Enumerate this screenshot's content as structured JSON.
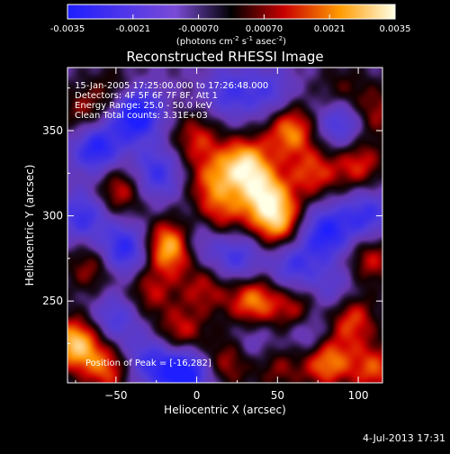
{
  "chart_data": {
    "type": "heatmap",
    "title": "Reconstructed RHESSI Image",
    "xlabel": "Heliocentric X (arcsec)",
    "ylabel": "Heliocentric Y (arcsec)",
    "xlim": [
      -80,
      115
    ],
    "ylim": [
      202,
      387
    ],
    "x_ticks": [
      -50,
      0,
      50,
      100
    ],
    "y_ticks": [
      250,
      300,
      350
    ],
    "colorbar": {
      "min": -0.0035,
      "max": 0.0035,
      "tick_values": [
        -0.0035,
        -0.0021,
        -0.0007,
        0.0007,
        0.0021,
        0.0035
      ],
      "tick_labels": [
        "-0.0035",
        "-0.0021",
        "-0.00070",
        "0.00070",
        "0.0021",
        "0.0035"
      ],
      "units_prefix": "(photons cm",
      "units_exp1": "-2",
      "units_mid1": " s",
      "units_exp2": "-1",
      "units_mid2": " asec",
      "units_exp3": "-2",
      "units_suffix": ")"
    },
    "info_lines": [
      "15-Jan-2005 17:25:00.000 to 17:26:48.000",
      "Detectors: 4F 5F 6F 7F 8F, Att 1",
      "Energy Range: 25.0 - 50.0 keV",
      "Clean    Total counts: 3.31E+03"
    ],
    "peak_label": "Position of Peak = [-16,282]",
    "peak": [
      -16,
      282
    ],
    "blobs": [
      {
        "x": -16,
        "y": 282,
        "v": 1.0
      },
      {
        "x": 30,
        "y": 330,
        "v": 0.95
      },
      {
        "x": 42,
        "y": 312,
        "v": 0.85
      },
      {
        "x": 50,
        "y": 296,
        "v": 0.8
      },
      {
        "x": 58,
        "y": 350,
        "v": 0.75
      },
      {
        "x": 72,
        "y": 325,
        "v": 0.55
      },
      {
        "x": 10,
        "y": 320,
        "v": 0.55
      },
      {
        "x": 15,
        "y": 300,
        "v": 0.5
      },
      {
        "x": 0,
        "y": 345,
        "v": 0.5
      },
      {
        "x": -75,
        "y": 225,
        "v": 0.95
      },
      {
        "x": -55,
        "y": 210,
        "v": 0.6
      },
      {
        "x": -65,
        "y": 270,
        "v": 0.45
      },
      {
        "x": -48,
        "y": 315,
        "v": 0.55
      },
      {
        "x": -70,
        "y": 360,
        "v": 0.4
      },
      {
        "x": -50,
        "y": 372,
        "v": 0.35
      },
      {
        "x": -10,
        "y": 230,
        "v": 0.55
      },
      {
        "x": 5,
        "y": 258,
        "v": 0.45
      },
      {
        "x": -30,
        "y": 255,
        "v": 0.45
      },
      {
        "x": 20,
        "y": 215,
        "v": 0.5
      },
      {
        "x": 35,
        "y": 250,
        "v": 0.75
      },
      {
        "x": 62,
        "y": 245,
        "v": 0.55
      },
      {
        "x": 80,
        "y": 215,
        "v": 0.8
      },
      {
        "x": 95,
        "y": 240,
        "v": 0.65
      },
      {
        "x": 108,
        "y": 275,
        "v": 0.5
      },
      {
        "x": 100,
        "y": 330,
        "v": 0.55
      },
      {
        "x": 110,
        "y": 360,
        "v": 0.45
      },
      {
        "x": 90,
        "y": 372,
        "v": 0.35
      },
      {
        "x": 110,
        "y": 210,
        "v": 0.6
      },
      {
        "x": 50,
        "y": 212,
        "v": 0.4
      },
      {
        "x": -38,
        "y": 360,
        "v": -1.0
      },
      {
        "x": -62,
        "y": 340,
        "v": -0.8
      },
      {
        "x": -45,
        "y": 280,
        "v": -0.75
      },
      {
        "x": -25,
        "y": 325,
        "v": -0.6
      },
      {
        "x": -8,
        "y": 208,
        "v": -1.0
      },
      {
        "x": -70,
        "y": 300,
        "v": -0.6
      },
      {
        "x": 25,
        "y": 275,
        "v": -0.55
      },
      {
        "x": 80,
        "y": 290,
        "v": -0.75
      },
      {
        "x": 60,
        "y": 270,
        "v": -0.55
      },
      {
        "x": 90,
        "y": 355,
        "v": -0.65
      },
      {
        "x": 105,
        "y": 300,
        "v": -0.6
      },
      {
        "x": 45,
        "y": 372,
        "v": -0.45
      },
      {
        "x": 20,
        "y": 372,
        "v": -0.5
      },
      {
        "x": 70,
        "y": 230,
        "v": -0.5
      },
      {
        "x": -30,
        "y": 215,
        "v": -0.55
      },
      {
        "x": -50,
        "y": 240,
        "v": -0.5
      },
      {
        "x": 0,
        "y": 285,
        "v": -0.45
      },
      {
        "x": 85,
        "y": 255,
        "v": -0.4
      },
      {
        "x": 35,
        "y": 225,
        "v": -0.35
      }
    ]
  },
  "footer": {
    "timestamp": "4-Jul-2013 17:31"
  }
}
